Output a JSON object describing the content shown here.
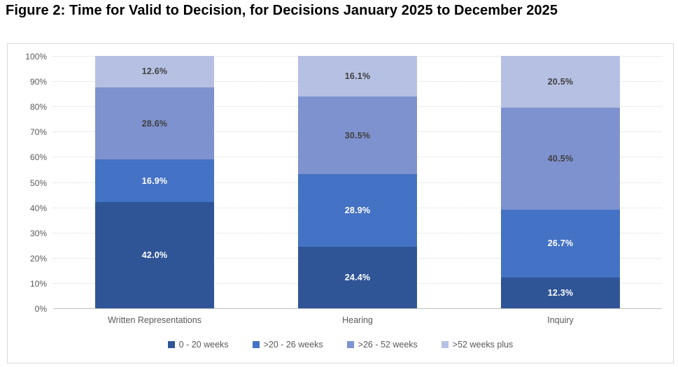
{
  "title": "Figure 2: Time for Valid to Decision, for Decisions January 2025 to December 2025",
  "colors": {
    "title_text": "#000000",
    "axis_text": "#595959",
    "gridline": "#d9d9d9",
    "baseline": "#bfbfbf",
    "frame_border": "#d9d9d9",
    "label_on_dark": "#ffffff",
    "label_on_light": "#404040"
  },
  "chart_data": {
    "type": "bar",
    "stacked": true,
    "grid": true,
    "legend_position": "bottom",
    "categories": [
      "Written Representations",
      "Hearing",
      "Inquiry"
    ],
    "series": [
      {
        "name": "0 - 20 weeks",
        "color": "#2f5597",
        "label_color": "#ffffff",
        "values": [
          42.0,
          24.4,
          12.3
        ]
      },
      {
        "name": ">20 - 26 weeks",
        "color": "#4472c4",
        "label_color": "#ffffff",
        "values": [
          16.9,
          28.9,
          26.7
        ]
      },
      {
        "name": ">26 - 52 weeks",
        "color": "#7e92cf",
        "label_color": "#404040",
        "values": [
          28.6,
          30.5,
          40.5
        ]
      },
      {
        "name": ">52 weeks plus",
        "color": "#b6c0e2",
        "label_color": "#404040",
        "values": [
          12.6,
          16.1,
          20.5
        ]
      }
    ],
    "y_axis": {
      "min": 0,
      "max": 100,
      "step": 10,
      "tick_suffix": "%",
      "tick_labels": [
        "0%",
        "10%",
        "20%",
        "30%",
        "40%",
        "50%",
        "60%",
        "70%",
        "80%",
        "90%",
        "100%"
      ]
    },
    "value_suffix": "%"
  }
}
